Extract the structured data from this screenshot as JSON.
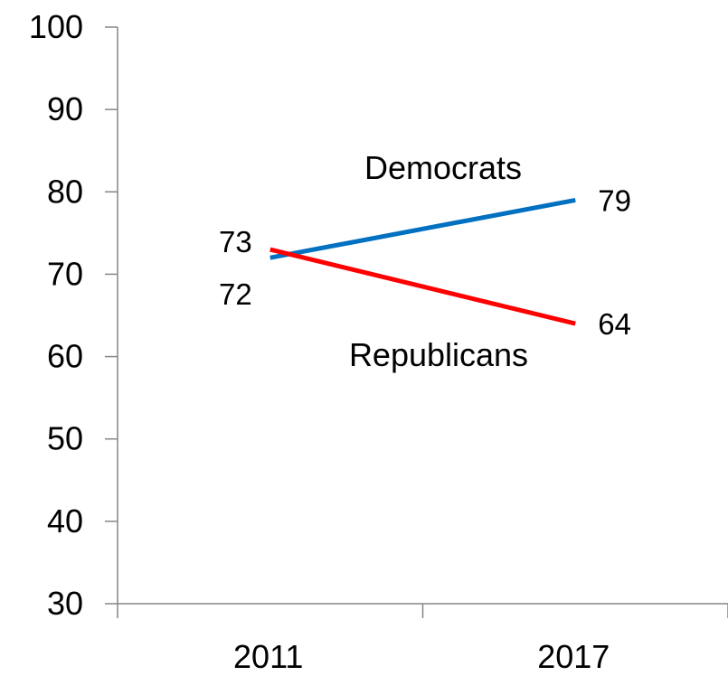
{
  "chart_data": {
    "type": "line",
    "categories": [
      "2011",
      "2017"
    ],
    "ylim": [
      30,
      100
    ],
    "yticks": [
      30,
      40,
      50,
      60,
      70,
      80,
      90,
      100
    ],
    "grid": false,
    "legend": "none",
    "series": [
      {
        "name": "Democrats",
        "values": [
          72,
          79
        ],
        "color": "#0070c0"
      },
      {
        "name": "Republicans",
        "values": [
          73,
          64
        ],
        "color": "#ff0000"
      }
    ]
  }
}
